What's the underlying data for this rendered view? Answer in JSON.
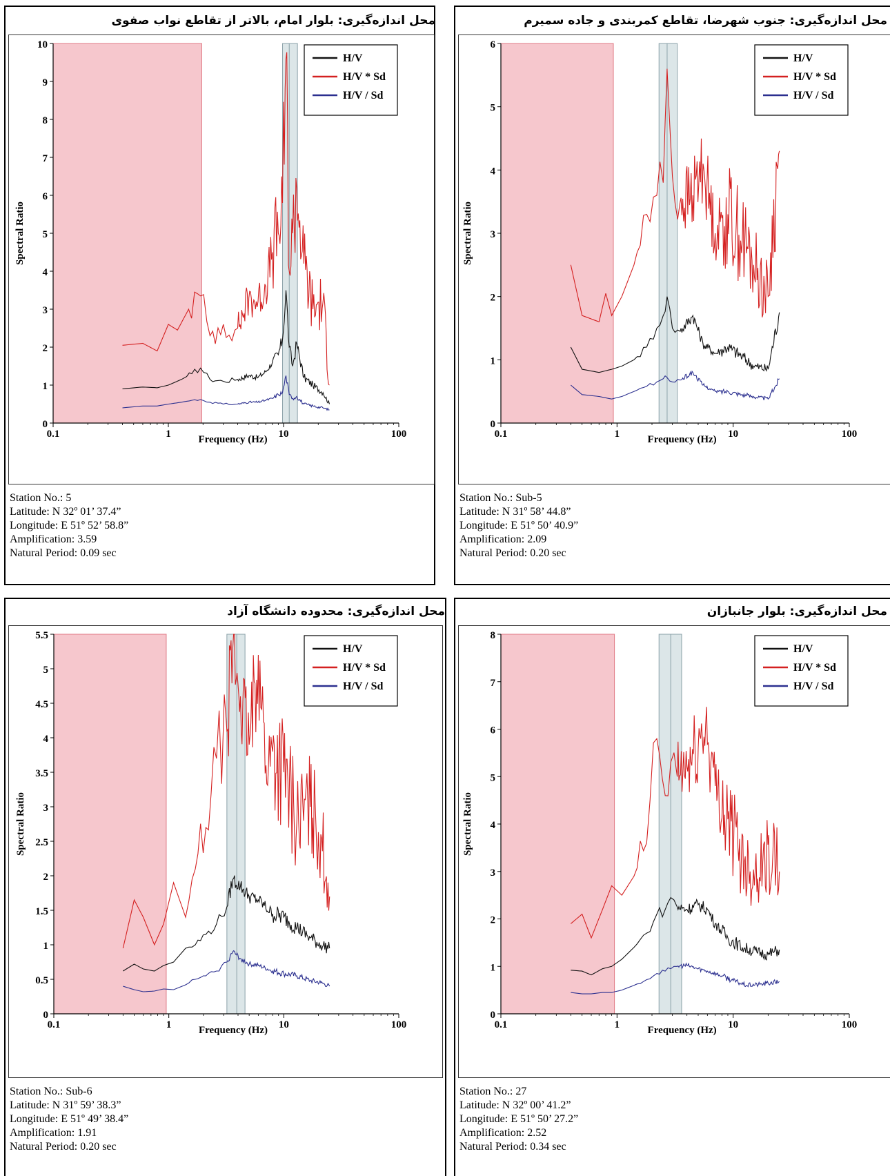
{
  "colors": {
    "hv": "#111111",
    "hv_sd_up": "#d42020",
    "hv_sd_down": "#2b2f8f",
    "pink_band": "#f6c7cd",
    "pink_border": "#e07a85",
    "peak_band": "#dce6e8"
  },
  "panels": [
    {
      "title": "محل اندازه‌گیری: بلوار امام، بالاتر از تقاطع نواب صفوی",
      "station": "Station No.: 5",
      "latitude": "Latitude: N 32º 01’ 37.4”",
      "longitude": "Longitude: E 51º 52’ 58.8”",
      "amplification": "Amplification: 3.59",
      "period": "Natural Period: 0.09 sec"
    },
    {
      "title": "محل اندازه‌گیری: جنوب شهرضا، تقاطع کمربندی و جاده سمیرم",
      "station": "Station No.: Sub-5",
      "latitude": "Latitude: N 31º 58’ 44.8”",
      "longitude": "Longitude: E 51º 50’ 40.9”",
      "amplification": "Amplification: 2.09",
      "period": "Natural Period: 0.20 sec"
    },
    {
      "title": "محل اندازه‌گیری: محدوده دانشگاه آزاد",
      "station": "Station No.: Sub-6",
      "latitude": "Latitude: N 31º 59’ 38.3”",
      "longitude": "Longitude: E 51º 49’ 38.4”",
      "amplification": "Amplification: 1.91",
      "period": "Natural Period: 0.20 sec"
    },
    {
      "title": "محل اندازه‌گیری: بلوار جانبازان",
      "station": "Station No.: 27",
      "latitude": "Latitude: N 32º 00’ 41.2”",
      "longitude": "Longitude: E 51º 50’ 27.2”",
      "amplification": "Amplification: 2.52",
      "period": "Natural Period: 0.34 sec"
    }
  ],
  "chart_data": [
    {
      "type": "line",
      "xscale": "log",
      "xlim": [
        0.1,
        100
      ],
      "ylim": [
        0,
        10
      ],
      "yticks": [
        "0",
        "1",
        "2",
        "3",
        "4",
        "5",
        "6",
        "7",
        "8",
        "9",
        "10"
      ],
      "ytick_values": [
        0,
        1,
        2,
        3,
        4,
        5,
        6,
        7,
        8,
        9,
        10
      ],
      "xticks": [
        "0.1",
        "1",
        "10",
        "100"
      ],
      "xtick_values": [
        0.1,
        1,
        10,
        100
      ],
      "xlabel": "Frequency (Hz)",
      "ylabel": "Spectral Ratio",
      "legend": [
        "H/V",
        "H/V * Sd",
        "H/V / Sd"
      ],
      "legend_position": "top-right",
      "shaded_low_freq": [
        0.1,
        1.95
      ],
      "peak_band": [
        9.8,
        13.2
      ],
      "peak_line": 11.2,
      "series": [
        {
          "name": "H/V",
          "x": [
            0.4,
            0.6,
            0.8,
            1.0,
            1.3,
            1.6,
            1.9,
            2.3,
            3,
            4,
            5,
            6,
            7,
            8,
            9,
            9.8,
            10.5,
            11.2,
            12,
            13,
            15,
            18,
            22,
            25
          ],
          "y": [
            0.9,
            0.95,
            0.93,
            1.0,
            1.15,
            1.3,
            1.45,
            1.15,
            1.1,
            1.15,
            1.25,
            1.2,
            1.35,
            1.6,
            1.8,
            2.2,
            3.5,
            2.0,
            1.5,
            2.1,
            1.2,
            1.0,
            0.8,
            0.5
          ]
        },
        {
          "name": "H/V * Sd",
          "x": [
            0.4,
            0.6,
            0.8,
            1.0,
            1.2,
            1.5,
            1.9,
            2.3,
            3,
            4,
            5,
            6,
            7,
            8,
            9,
            9.8,
            10.5,
            11.2,
            12,
            13,
            15,
            18,
            22,
            25
          ],
          "y": [
            2.05,
            2.1,
            1.9,
            2.6,
            2.45,
            3.0,
            3.35,
            2.3,
            2.6,
            2.5,
            3.3,
            3.2,
            3.6,
            4.5,
            5.0,
            5.8,
            9.6,
            4.0,
            5.0,
            6.2,
            4.2,
            3.0,
            3.2,
            1.0
          ]
        },
        {
          "name": "H/V / Sd",
          "x": [
            0.4,
            0.6,
            0.8,
            1.0,
            1.3,
            1.6,
            1.9,
            2.3,
            3,
            4,
            5,
            6,
            7,
            8,
            9,
            9.8,
            10.5,
            11.2,
            12,
            13,
            15,
            18,
            22,
            25
          ],
          "y": [
            0.4,
            0.45,
            0.45,
            0.5,
            0.55,
            0.6,
            0.62,
            0.55,
            0.5,
            0.5,
            0.55,
            0.55,
            0.6,
            0.65,
            0.75,
            0.8,
            1.25,
            0.75,
            0.65,
            0.7,
            0.5,
            0.45,
            0.4,
            0.35
          ]
        }
      ]
    },
    {
      "type": "line",
      "xscale": "log",
      "xlim": [
        0.1,
        100
      ],
      "ylim": [
        0,
        6
      ],
      "yticks": [
        "0",
        "1",
        "2",
        "3",
        "4",
        "5",
        "6"
      ],
      "ytick_values": [
        0,
        1,
        2,
        3,
        4,
        5,
        6
      ],
      "xticks": [
        "0.1",
        "1",
        "10",
        "100"
      ],
      "xtick_values": [
        0.1,
        1,
        10,
        100
      ],
      "xlabel": "Frequency (Hz)",
      "ylabel": "Spectral Ratio",
      "legend": [
        "H/V",
        "H/V * Sd",
        "H/V / Sd"
      ],
      "legend_position": "top-right",
      "shaded_low_freq": [
        0.1,
        0.93
      ],
      "peak_band": [
        2.3,
        3.3
      ],
      "peak_line": 2.7,
      "series": [
        {
          "name": "H/V",
          "x": [
            0.4,
            0.5,
            0.7,
            0.9,
            1.1,
            1.4,
            1.8,
            2.2,
            2.5,
            2.7,
            3,
            3.5,
            4.5,
            5.5,
            7,
            9,
            12,
            15,
            20,
            25
          ],
          "y": [
            1.2,
            0.85,
            0.8,
            0.85,
            0.9,
            1.0,
            1.2,
            1.5,
            1.7,
            2.0,
            1.5,
            1.45,
            1.7,
            1.25,
            1.1,
            1.2,
            1.05,
            0.9,
            0.85,
            1.75
          ]
        },
        {
          "name": "H/V * Sd",
          "x": [
            0.4,
            0.5,
            0.7,
            0.8,
            0.9,
            1.1,
            1.4,
            1.8,
            2.2,
            2.5,
            2.7,
            3,
            3.5,
            4.5,
            5.5,
            7,
            9,
            12,
            15,
            20,
            25
          ],
          "y": [
            2.5,
            1.7,
            1.6,
            2.05,
            1.7,
            2.0,
            2.5,
            3.3,
            3.6,
            3.8,
            5.6,
            3.9,
            3.5,
            3.6,
            4.1,
            3.0,
            3.3,
            2.9,
            2.5,
            2.0,
            4.3
          ]
        },
        {
          "name": "H/V / Sd",
          "x": [
            0.4,
            0.5,
            0.7,
            0.9,
            1.1,
            1.4,
            1.8,
            2.2,
            2.5,
            2.7,
            3,
            3.5,
            4.5,
            5.5,
            7,
            9,
            12,
            15,
            20,
            25
          ],
          "y": [
            0.6,
            0.45,
            0.42,
            0.38,
            0.42,
            0.5,
            0.58,
            0.65,
            0.7,
            0.72,
            0.65,
            0.68,
            0.8,
            0.6,
            0.5,
            0.5,
            0.45,
            0.42,
            0.38,
            0.7
          ]
        }
      ]
    },
    {
      "type": "line",
      "xscale": "log",
      "xlim": [
        0.1,
        100
      ],
      "ylim": [
        0,
        5.5
      ],
      "yticks": [
        "0",
        "0.5",
        "1",
        "1.5",
        "2",
        "2.5",
        "3",
        "3.5",
        "4",
        "4.5",
        "5",
        "5.5"
      ],
      "ytick_values": [
        0,
        0.5,
        1,
        1.5,
        2,
        2.5,
        3,
        3.5,
        4,
        4.5,
        5,
        5.5
      ],
      "xticks": [
        "0.1",
        "1",
        "10",
        "100"
      ],
      "xtick_values": [
        0.1,
        1,
        10,
        100
      ],
      "xlabel": "Frequency (Hz)",
      "ylabel": "Spectral Ratio",
      "legend": [
        "H/V",
        "H/V * Sd",
        "H/V / Sd"
      ],
      "legend_position": "top-right",
      "shaded_low_freq": [
        0.1,
        0.95
      ],
      "peak_band": [
        3.2,
        4.6
      ],
      "peak_line": 3.9,
      "series": [
        {
          "name": "H/V",
          "x": [
            0.4,
            0.5,
            0.6,
            0.75,
            0.9,
            1.1,
            1.4,
            1.7,
            2.1,
            2.6,
            3.2,
            3.6,
            4.2,
            5,
            6,
            8,
            10,
            13,
            17,
            21,
            25
          ],
          "y": [
            0.62,
            0.72,
            0.65,
            0.62,
            0.7,
            0.75,
            0.95,
            1.0,
            1.15,
            1.3,
            1.55,
            1.95,
            1.85,
            1.7,
            1.65,
            1.45,
            1.4,
            1.25,
            1.1,
            1.0,
            0.95
          ]
        },
        {
          "name": "H/V * Sd",
          "x": [
            0.4,
            0.5,
            0.6,
            0.75,
            0.9,
            1.1,
            1.4,
            1.7,
            2.1,
            2.6,
            3.2,
            3.6,
            4.2,
            5,
            6,
            7,
            8,
            10,
            13,
            17,
            21,
            25
          ],
          "y": [
            0.95,
            1.65,
            1.4,
            1.0,
            1.3,
            1.9,
            1.4,
            2.1,
            2.7,
            3.7,
            4.1,
            5.3,
            4.6,
            3.9,
            5.2,
            3.6,
            3.8,
            3.5,
            2.8,
            3.0,
            2.6,
            1.7
          ]
        },
        {
          "name": "H/V / Sd",
          "x": [
            0.4,
            0.5,
            0.6,
            0.75,
            0.9,
            1.1,
            1.4,
            1.7,
            2.1,
            2.6,
            3.2,
            3.6,
            4.2,
            5,
            6,
            8,
            10,
            13,
            17,
            21,
            25
          ],
          "y": [
            0.4,
            0.35,
            0.32,
            0.33,
            0.36,
            0.35,
            0.42,
            0.5,
            0.55,
            0.62,
            0.75,
            0.9,
            0.8,
            0.72,
            0.7,
            0.62,
            0.58,
            0.55,
            0.48,
            0.45,
            0.4
          ]
        }
      ]
    },
    {
      "type": "line",
      "xscale": "log",
      "xlim": [
        0.1,
        100
      ],
      "ylim": [
        0,
        8
      ],
      "yticks": [
        "0",
        "1",
        "2",
        "3",
        "4",
        "5",
        "6",
        "7",
        "8"
      ],
      "ytick_values": [
        0,
        1,
        2,
        3,
        4,
        5,
        6,
        7,
        8
      ],
      "xticks": [
        "0.1",
        "1",
        "10",
        "100"
      ],
      "xtick_values": [
        0.1,
        1,
        10,
        100
      ],
      "xlabel": "Frequency (Hz)",
      "ylabel": "Spectral Ratio",
      "legend": [
        "H/V",
        "H/V * Sd",
        "H/V / Sd"
      ],
      "legend_position": "top-right",
      "shaded_low_freq": [
        0.1,
        0.95
      ],
      "peak_band": [
        2.3,
        3.6
      ],
      "peak_line": 2.9,
      "series": [
        {
          "name": "H/V",
          "x": [
            0.4,
            0.5,
            0.6,
            0.75,
            0.9,
            1.1,
            1.4,
            1.8,
            2.2,
            2.6,
            2.9,
            3.3,
            4,
            5,
            6,
            7,
            9,
            12,
            16,
            20,
            25
          ],
          "y": [
            0.92,
            0.9,
            0.82,
            0.95,
            1.0,
            1.15,
            1.4,
            1.7,
            2.1,
            2.2,
            2.45,
            2.25,
            2.2,
            2.3,
            2.2,
            1.9,
            1.6,
            1.4,
            1.3,
            1.25,
            1.35
          ]
        },
        {
          "name": "H/V * Sd",
          "x": [
            0.4,
            0.5,
            0.6,
            0.75,
            0.9,
            1.1,
            1.4,
            1.8,
            2.2,
            2.6,
            2.9,
            3.3,
            4,
            5,
            5.8,
            7,
            9,
            11,
            14,
            18,
            22,
            25
          ],
          "y": [
            1.9,
            2.1,
            1.6,
            2.2,
            2.7,
            2.5,
            2.9,
            3.6,
            5.8,
            4.6,
            5.3,
            5.0,
            5.2,
            5.6,
            6.1,
            4.8,
            4.1,
            3.5,
            3.0,
            3.2,
            3.4,
            3.0
          ]
        },
        {
          "name": "H/V / Sd",
          "x": [
            0.4,
            0.5,
            0.6,
            0.75,
            0.9,
            1.1,
            1.4,
            1.8,
            2.2,
            2.6,
            2.9,
            3.3,
            4,
            5,
            6,
            8,
            10,
            13,
            17,
            21,
            25
          ],
          "y": [
            0.45,
            0.42,
            0.42,
            0.45,
            0.45,
            0.5,
            0.6,
            0.72,
            0.85,
            0.9,
            0.95,
            1.0,
            1.02,
            0.95,
            0.9,
            0.8,
            0.7,
            0.6,
            0.62,
            0.65,
            0.68
          ]
        }
      ]
    }
  ]
}
